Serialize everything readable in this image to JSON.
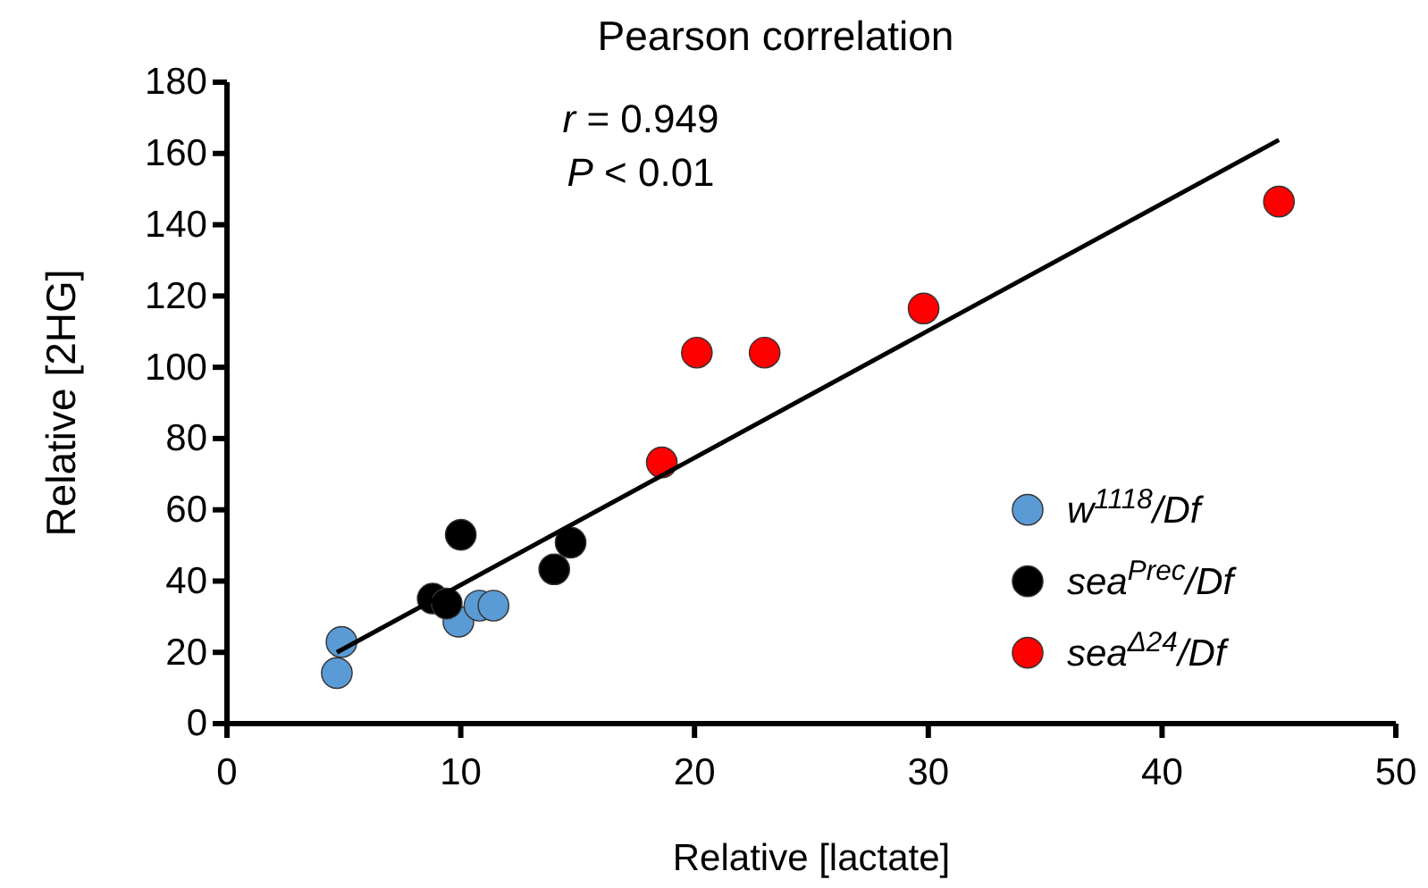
{
  "chart_data": {
    "type": "scatter",
    "title": "Pearson correlation",
    "xlabel": "Relative [lactate]",
    "ylabel": "Relative [2HG]",
    "xlim": [
      0,
      50
    ],
    "xticks": [
      0,
      10,
      20,
      30,
      40,
      50
    ],
    "ylim": [
      0,
      180
    ],
    "yticks": [
      0,
      20,
      40,
      60,
      80,
      100,
      120,
      140,
      160,
      180
    ],
    "annotations": [
      "r = 0.949",
      "P < 0.01"
    ],
    "legend": "right",
    "marker": "circle",
    "grid": false,
    "series": [
      {
        "name": "w$^{1118}$/Df",
        "color": "#5b9bd5",
        "x": [
          4.7,
          4.9,
          9.9,
          10.8,
          11.4
        ],
        "values": [
          14.2,
          22.9,
          28.6,
          33.1,
          33.1
        ]
      },
      {
        "name": "sea$^{Prec}$/Df",
        "color": "#000000",
        "x": [
          10.0,
          8.8,
          9.4,
          14.0,
          14.7
        ],
        "values": [
          53,
          35.1,
          33.7,
          43.3,
          50.8
        ]
      },
      {
        "name": "sea$^{Δ24}$/Df",
        "color": "#ff0000",
        "x": [
          18.6,
          20.1,
          23.0,
          29.8,
          45.0
        ],
        "values": [
          73.3,
          104.1,
          104.1,
          116.5,
          146.5
        ]
      },
      {
        "type": "line",
        "color": "#000000",
        "marker": "none",
        "x": [
          4.7,
          45.0
        ],
        "values": [
          20,
          163.8
        ]
      }
    ]
  }
}
